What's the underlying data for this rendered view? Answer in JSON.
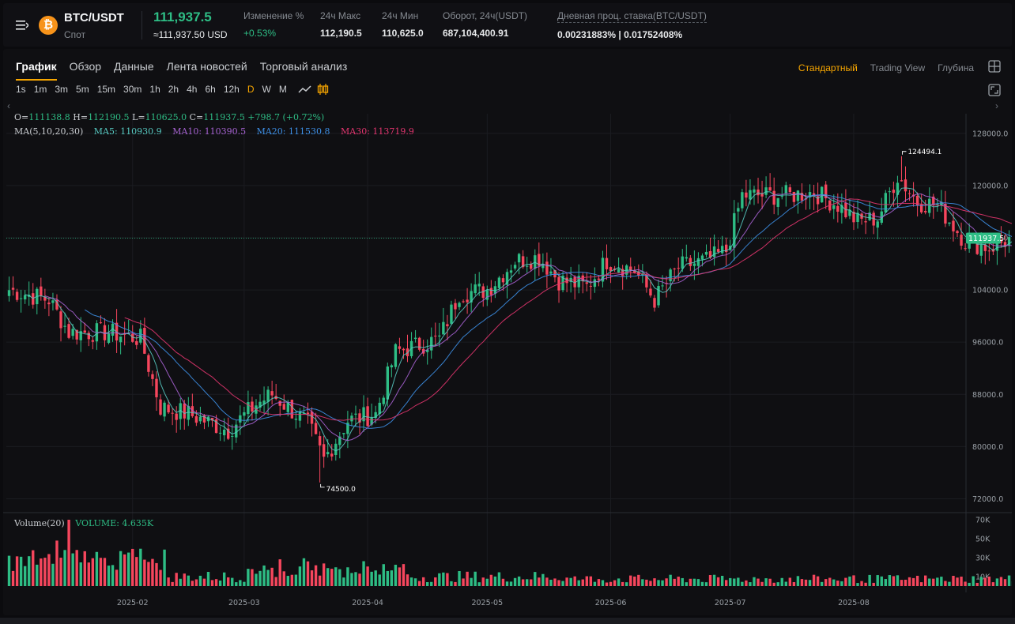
{
  "header": {
    "pair": "BTC/USDT",
    "market": "Спот",
    "price": "111,937.5",
    "price_usd": "≈111,937.50 USD",
    "stats": [
      {
        "label": "Изменение %",
        "value": "+0.53%"
      },
      {
        "label": "24ч Макс",
        "value": "112,190.5"
      },
      {
        "label": "24ч Мин",
        "value": "110,625.0"
      },
      {
        "label": "Оборот, 24ч(USDT)",
        "value": "687,104,400.91"
      },
      {
        "label": "Дневная проц. ставка(BTC/USDT)",
        "value": "0.00231883% | 0.01752408%"
      }
    ]
  },
  "tabs": [
    "График",
    "Обзор",
    "Данные",
    "Лента новостей",
    "Торговый анализ"
  ],
  "active_tab": 0,
  "views": [
    "Стандартный",
    "Trading View",
    "Глубина"
  ],
  "active_view": 0,
  "intervals": [
    "1s",
    "1m",
    "3m",
    "5m",
    "15m",
    "30m",
    "1h",
    "2h",
    "4h",
    "6h",
    "12h",
    "D",
    "W",
    "M"
  ],
  "active_interval": "D",
  "legend": {
    "ohlc": {
      "o_label": "O=",
      "o": "111138.8",
      "h_label": "H=",
      "h": "112190.5",
      "l_label": "L=",
      "l": "110625.0",
      "c_label": "C=",
      "c": "111937.5",
      "change": "+798.7 (+0.72%)"
    },
    "ma": {
      "label": "MA(5,10,20,30)",
      "ma5": "MA5: 110930.9",
      "ma10": "MA10: 110390.5",
      "ma20": "MA20: 111530.8",
      "ma30": "MA30: 113719.9"
    },
    "volume": {
      "label": "Volume(20)",
      "value": "VOLUME: 4.635K"
    }
  },
  "chart_data": {
    "type": "candlestick",
    "x_labels": [
      "2025-02",
      "2025-03",
      "2025-04",
      "2025-05",
      "2025-06",
      "2025-07",
      "2025-08"
    ],
    "y_ticks": [
      "128000.0",
      "120000.0",
      "112000.0",
      "104000.0",
      "96000.0",
      "88000.0",
      "80000.0",
      "72000.0"
    ],
    "ylim": [
      70000,
      131000
    ],
    "volume_ticks": [
      "70K",
      "50K",
      "30K",
      "10K"
    ],
    "volume_ylim": [
      0,
      75
    ],
    "current_price_label": "111937.5",
    "high_marker": "124494.1",
    "low_marker": "74500.0",
    "colors": {
      "up": "#2ebd85",
      "down": "#f6465d",
      "ma5": "#56c8c0",
      "ma10": "#a662d1",
      "ma20": "#3d8fe6",
      "ma30": "#e3356f"
    },
    "anchors_close": [
      {
        "day": 0,
        "price": 104000
      },
      {
        "day": 10,
        "price": 102500
      },
      {
        "day": 15,
        "price": 97500
      },
      {
        "day": 25,
        "price": 97500
      },
      {
        "day": 33,
        "price": 96500
      },
      {
        "day": 38,
        "price": 86000
      },
      {
        "day": 45,
        "price": 85000
      },
      {
        "day": 55,
        "price": 82500
      },
      {
        "day": 62,
        "price": 86500
      },
      {
        "day": 66,
        "price": 88000
      },
      {
        "day": 75,
        "price": 83500
      },
      {
        "day": 79,
        "price": 78000
      },
      {
        "day": 85,
        "price": 84000
      },
      {
        "day": 92,
        "price": 85000
      },
      {
        "day": 97,
        "price": 94500
      },
      {
        "day": 108,
        "price": 96500
      },
      {
        "day": 113,
        "price": 103500
      },
      {
        "day": 120,
        "price": 104000
      },
      {
        "day": 127,
        "price": 108500
      },
      {
        "day": 133,
        "price": 109000
      },
      {
        "day": 138,
        "price": 105500
      },
      {
        "day": 145,
        "price": 104500
      },
      {
        "day": 150,
        "price": 108500
      },
      {
        "day": 157,
        "price": 107000
      },
      {
        "day": 162,
        "price": 102500
      },
      {
        "day": 168,
        "price": 107500
      },
      {
        "day": 175,
        "price": 108500
      },
      {
        "day": 180,
        "price": 110000
      },
      {
        "day": 184,
        "price": 118500
      },
      {
        "day": 190,
        "price": 118500
      },
      {
        "day": 196,
        "price": 118500
      },
      {
        "day": 202,
        "price": 119000
      },
      {
        "day": 208,
        "price": 117000
      },
      {
        "day": 213,
        "price": 114500
      },
      {
        "day": 218,
        "price": 115000
      },
      {
        "day": 223,
        "price": 121500
      },
      {
        "day": 228,
        "price": 117500
      },
      {
        "day": 233,
        "price": 117000
      },
      {
        "day": 240,
        "price": 111500
      },
      {
        "day": 246,
        "price": 110500
      },
      {
        "day": 252,
        "price": 111937
      }
    ],
    "extremes": [
      {
        "day": 78,
        "type": "low",
        "price": 74500
      },
      {
        "day": 224,
        "type": "high",
        "price": 124494.1
      }
    ]
  }
}
